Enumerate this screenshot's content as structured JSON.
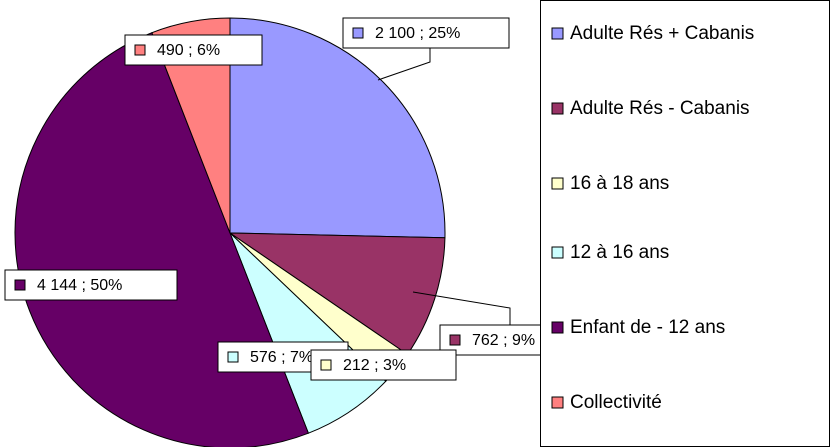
{
  "chart_data": {
    "type": "pie",
    "categories": [
      "Adulte Rés + Cabanis",
      "Adulte Rés - Cabanis",
      "16 à 18 ans",
      "12 à 16 ans",
      "Enfant de - 12 ans",
      "Collectivité"
    ],
    "values": [
      2100,
      762,
      212,
      576,
      4144,
      490
    ],
    "value_labels": [
      "2 100   ; 25%",
      "762   ; 9%",
      "212   ; 3%",
      "576   ; 7%",
      "4 144   ; 50%",
      "490   ; 6%"
    ],
    "colors": [
      "#9999ff",
      "#993366",
      "#ffffcc",
      "#ccffff",
      "#660066",
      "#ff8080"
    ],
    "legend": "right"
  }
}
